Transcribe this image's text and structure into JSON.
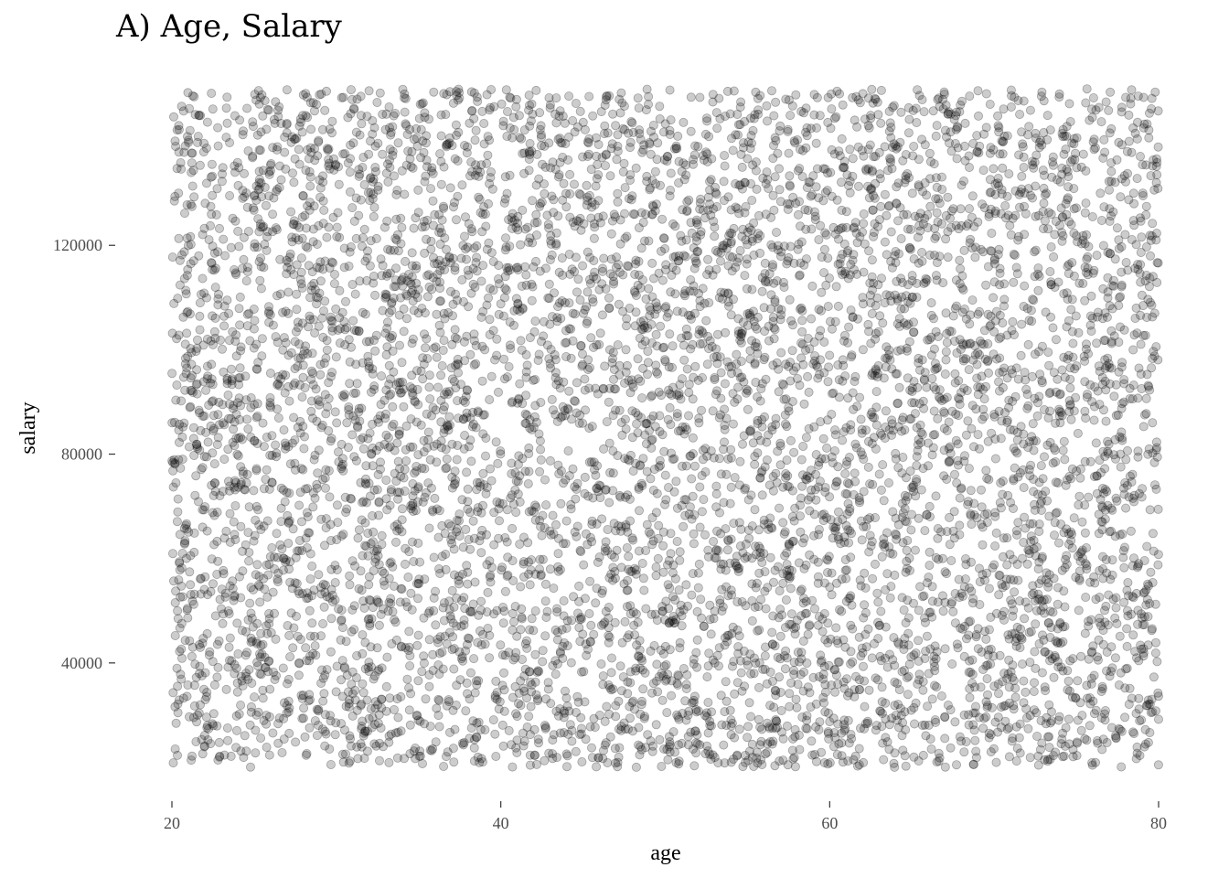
{
  "chart_data": {
    "type": "scatter",
    "title": "A)  Age, Salary",
    "xlabel": "age",
    "ylabel": "salary",
    "xlim": [
      20,
      80
    ],
    "ylim": [
      20000,
      150000
    ],
    "x_ticks": [
      20,
      40,
      60,
      80
    ],
    "y_ticks": [
      40000,
      80000,
      120000
    ],
    "x_tick_labels": [
      "20",
      "40",
      "60",
      "80"
    ],
    "y_tick_labels": [
      "40000",
      "80000",
      "120000"
    ],
    "grid": false,
    "legend": "none",
    "point_color": "#000000",
    "point_alpha": 0.2,
    "distribution": "uniform",
    "series": [
      {
        "values": [
          [
            20.4,
            130000
          ],
          [
            21.1,
            142000
          ],
          [
            22.6,
            118500
          ],
          [
            23.8,
            135200
          ],
          [
            25.0,
            104000
          ],
          [
            26.3,
            147500
          ],
          [
            27.7,
            121000
          ],
          [
            28.9,
            139800
          ],
          [
            30.2,
            111300
          ],
          [
            31.5,
            128700
          ],
          [
            32.8,
            145100
          ],
          [
            34.1,
            107800
          ],
          [
            35.4,
            123600
          ],
          [
            36.7,
            138900
          ],
          [
            38.0,
            115200
          ],
          [
            39.3,
            131800
          ],
          [
            40.6,
            148200
          ],
          [
            41.9,
            109400
          ],
          [
            43.2,
            126300
          ],
          [
            44.5,
            141700
          ],
          [
            45.8,
            113600
          ],
          [
            47.1,
            129900
          ],
          [
            48.4,
            146300
          ],
          [
            49.7,
            104500
          ],
          [
            51.0,
            120800
          ],
          [
            52.3,
            137200
          ],
          [
            53.6,
            110900
          ],
          [
            54.9,
            127400
          ],
          [
            56.2,
            143800
          ],
          [
            57.5,
            117600
          ],
          [
            58.8,
            132100
          ],
          [
            60.1,
            149000
          ],
          [
            61.4,
            106200
          ],
          [
            62.7,
            122500
          ],
          [
            64.0,
            139100
          ],
          [
            65.3,
            112700
          ],
          [
            66.6,
            128900
          ],
          [
            67.9,
            145600
          ],
          [
            69.2,
            119200
          ],
          [
            70.5,
            134800
          ],
          [
            71.8,
            108300
          ],
          [
            73.1,
            124700
          ],
          [
            74.4,
            140900
          ],
          [
            75.7,
            114400
          ],
          [
            77.0,
            130600
          ],
          [
            78.3,
            147100
          ],
          [
            79.6,
            121800
          ],
          [
            20.9,
            96500
          ],
          [
            22.2,
            82300
          ],
          [
            23.5,
            101800
          ],
          [
            24.8,
            88900
          ],
          [
            26.1,
            74500
          ],
          [
            27.4,
            93200
          ],
          [
            28.7,
            79800
          ],
          [
            30.0,
            98600
          ],
          [
            31.3,
            85100
          ],
          [
            32.6,
            70900
          ],
          [
            33.9,
            91700
          ],
          [
            35.2,
            77300
          ],
          [
            36.5,
            99900
          ],
          [
            37.8,
            83600
          ],
          [
            39.1,
            72400
          ],
          [
            40.4,
            94800
          ],
          [
            41.7,
            80100
          ],
          [
            43.0,
            97300
          ],
          [
            44.3,
            86700
          ],
          [
            45.6,
            71600
          ],
          [
            46.9,
            92500
          ],
          [
            48.2,
            78200
          ],
          [
            49.5,
            100700
          ],
          [
            50.8,
            84400
          ],
          [
            52.1,
            73700
          ],
          [
            53.4,
            95600
          ],
          [
            54.7,
            81900
          ],
          [
            56.0,
            98100
          ],
          [
            57.3,
            87500
          ],
          [
            58.6,
            75100
          ],
          [
            59.9,
            93900
          ],
          [
            61.2,
            79400
          ],
          [
            62.5,
            101200
          ],
          [
            63.8,
            85800
          ],
          [
            65.1,
            72900
          ],
          [
            66.4,
            96200
          ],
          [
            67.7,
            82600
          ],
          [
            69.0,
            99400
          ],
          [
            70.3,
            88200
          ],
          [
            71.6,
            76400
          ],
          [
            72.9,
            94100
          ],
          [
            74.2,
            80700
          ],
          [
            75.5,
            97800
          ],
          [
            76.8,
            86300
          ],
          [
            78.1,
            74000
          ],
          [
            79.4,
            92900
          ],
          [
            20.6,
            58200
          ],
          [
            21.9,
            44700
          ],
          [
            23.2,
            63900
          ],
          [
            24.5,
            37400
          ],
          [
            25.8,
            52600
          ],
          [
            27.1,
            66800
          ],
          [
            28.4,
            41300
          ],
          [
            29.7,
            57900
          ],
          [
            31.0,
            34100
          ],
          [
            32.3,
            61500
          ],
          [
            33.6,
            47800
          ],
          [
            34.9,
            55200
          ],
          [
            36.2,
            39600
          ],
          [
            37.5,
            64300
          ],
          [
            38.8,
            50100
          ],
          [
            40.1,
            35700
          ],
          [
            41.4,
            59400
          ],
          [
            42.7,
            45200
          ],
          [
            44.0,
            67200
          ],
          [
            45.3,
            42600
          ],
          [
            46.6,
            56300
          ],
          [
            47.9,
            38300
          ],
          [
            49.2,
            62700
          ],
          [
            50.5,
            48900
          ],
          [
            51.8,
            33600
          ],
          [
            53.1,
            60100
          ],
          [
            54.4,
            46300
          ],
          [
            55.7,
            65500
          ],
          [
            57.0,
            40800
          ],
          [
            58.3,
            54100
          ],
          [
            59.6,
            36900
          ],
          [
            60.9,
            63100
          ],
          [
            62.2,
            49600
          ],
          [
            63.5,
            57100
          ],
          [
            64.8,
            43400
          ],
          [
            66.1,
            68000
          ],
          [
            67.4,
            51300
          ],
          [
            68.7,
            37800
          ],
          [
            70.0,
            58800
          ],
          [
            71.3,
            44100
          ],
          [
            72.6,
            62200
          ],
          [
            73.9,
            39200
          ],
          [
            75.2,
            55800
          ],
          [
            76.5,
            47100
          ],
          [
            77.8,
            64700
          ],
          [
            79.1,
            41900
          ],
          [
            20.2,
            23500
          ],
          [
            21.5,
            28700
          ],
          [
            22.8,
            21400
          ],
          [
            24.1,
            30200
          ],
          [
            25.4,
            25600
          ],
          [
            26.7,
            22800
          ],
          [
            28.0,
            29400
          ],
          [
            29.3,
            24100
          ],
          [
            30.6,
            31700
          ],
          [
            31.9,
            26900
          ],
          [
            33.2,
            20900
          ],
          [
            34.5,
            28100
          ],
          [
            35.8,
            23200
          ],
          [
            37.1,
            30900
          ],
          [
            38.4,
            25300
          ],
          [
            39.7,
            22100
          ],
          [
            41.0,
            29800
          ],
          [
            42.3,
            24700
          ],
          [
            43.6,
            31200
          ],
          [
            44.9,
            26400
          ],
          [
            46.2,
            21700
          ],
          [
            47.5,
            28500
          ],
          [
            48.8,
            23800
          ],
          [
            50.1,
            30500
          ],
          [
            51.4,
            25900
          ],
          [
            52.7,
            22500
          ],
          [
            54.0,
            29100
          ],
          [
            55.3,
            24400
          ],
          [
            56.6,
            31500
          ],
          [
            57.9,
            27200
          ],
          [
            59.2,
            21100
          ],
          [
            60.5,
            28300
          ],
          [
            61.8,
            23600
          ],
          [
            63.1,
            30700
          ],
          [
            64.4,
            26100
          ],
          [
            65.7,
            22300
          ],
          [
            67.0,
            29600
          ],
          [
            68.3,
            24900
          ],
          [
            69.6,
            31900
          ],
          [
            70.9,
            27600
          ],
          [
            72.2,
            21900
          ],
          [
            73.5,
            28900
          ],
          [
            74.8,
            23400
          ],
          [
            76.1,
            30300
          ],
          [
            77.4,
            25700
          ],
          [
            78.7,
            22700
          ],
          [
            80.0,
            29200
          ]
        ]
      }
    ]
  }
}
